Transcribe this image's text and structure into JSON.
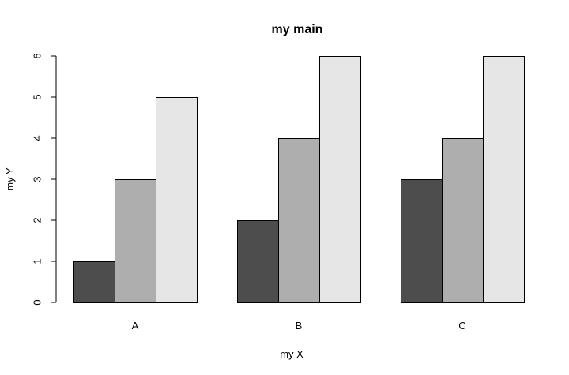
{
  "chart_data": {
    "type": "bar",
    "title": "my main",
    "xlabel": "my X",
    "ylabel": "my Y",
    "categories": [
      "A",
      "B",
      "C"
    ],
    "ylim": [
      0,
      6
    ],
    "yticks": [
      0,
      1,
      2,
      3,
      4,
      5,
      6
    ],
    "grid": false,
    "series": [
      {
        "values": [
          1,
          2,
          3
        ],
        "color": "#4d4d4d"
      },
      {
        "values": [
          3,
          4,
          4
        ],
        "color": "#aeaeae"
      },
      {
        "values": [
          5,
          6,
          6
        ],
        "color": "#e6e6e6"
      }
    ]
  }
}
